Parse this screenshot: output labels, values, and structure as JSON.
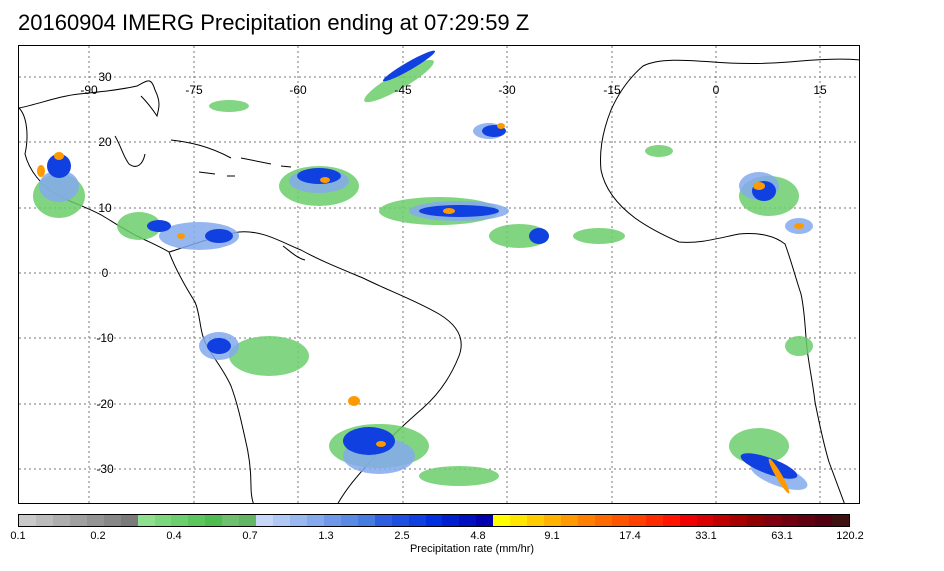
{
  "title": "20160904 IMERG Precipitation ending at 07:29:59 Z",
  "map": {
    "longitude_labels": [
      "-90",
      "-75",
      "-60",
      "-45",
      "-30",
      "-15",
      "0",
      "15"
    ],
    "latitude_labels": [
      "30",
      "20",
      "10",
      "0",
      "-10",
      "-20",
      "-30"
    ],
    "grid": "dotted"
  },
  "colorbar": {
    "title": "Precipitation rate (mm/hr)",
    "tick_labels": [
      "0.1",
      "0.2",
      "0.4",
      "0.7",
      "1.3",
      "2.5",
      "4.8",
      "9.1",
      "17.4",
      "33.1",
      "63.1",
      "120.2"
    ],
    "colors": [
      "#c9c9c9",
      "#bbbbbb",
      "#adadad",
      "#a0a0a0",
      "#939393",
      "#878787",
      "#7a7a7a",
      "#8ee08e",
      "#7cd77c",
      "#6cce6c",
      "#5cc55c",
      "#4ebc4e",
      "#6fbf6f",
      "#62b562",
      "#c7d7f7",
      "#b0c8f4",
      "#99b8f0",
      "#84a9ec",
      "#6f99e8",
      "#5a8ae4",
      "#467be0",
      "#2f5fe0",
      "#1f4fe0",
      "#1040e0",
      "#0030e0",
      "#0020d0",
      "#0010c0",
      "#0000b0",
      "#ffff00",
      "#ffe600",
      "#ffcc00",
      "#ffb300",
      "#ff9900",
      "#ff8000",
      "#ff6a00",
      "#ff5500",
      "#ff4000",
      "#ff2b00",
      "#ff1500",
      "#f00000",
      "#d80000",
      "#c00000",
      "#a80000",
      "#900000",
      "#800010",
      "#700010",
      "#600010",
      "#500010",
      "#401010"
    ]
  }
}
